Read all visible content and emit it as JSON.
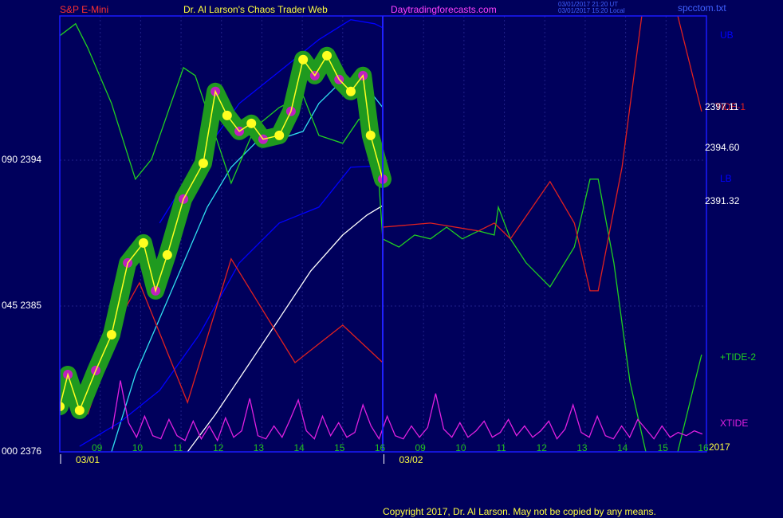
{
  "header": {
    "instrument": "S&P E-Mini",
    "title": "Dr. Al Larson's Chaos Trader Web",
    "site": "Daytradingforecasts.com",
    "stamp_1": "03/01/2017 21:20 UT",
    "stamp_2": "03/01/2017 15:20 Local",
    "file": "spcctom.txt"
  },
  "footer": "Copyright 2017, Dr. Al Larson. May not be copied by any means.",
  "chart_data": {
    "type": "line",
    "xlim": [
      0,
      16
    ],
    "ylim": [
      2376,
      2402.9
    ],
    "xticks": [
      {
        "value": 1,
        "label": "09"
      },
      {
        "value": 2,
        "label": "10"
      },
      {
        "value": 3,
        "label": "11"
      },
      {
        "value": 4,
        "label": "12"
      },
      {
        "value": 5,
        "label": "13"
      },
      {
        "value": 6,
        "label": "14"
      },
      {
        "value": 7,
        "label": "15"
      },
      {
        "value": 8,
        "label": "16"
      },
      {
        "value": 9,
        "label": "09"
      },
      {
        "value": 10,
        "label": "10"
      },
      {
        "value": 11,
        "label": "11"
      },
      {
        "value": 12,
        "label": "12"
      },
      {
        "value": 13,
        "label": "13"
      },
      {
        "value": 14,
        "label": "14"
      },
      {
        "value": 15,
        "label": "15"
      },
      {
        "value": 16,
        "label": "16"
      }
    ],
    "date_ticks": [
      {
        "value": 0,
        "label": "03/01"
      },
      {
        "value": 8,
        "label": "03/02"
      }
    ],
    "yticks": [
      {
        "value": 2376,
        "label": "000  2376"
      },
      {
        "value": 2385,
        "label": "045  2385"
      },
      {
        "value": 2394,
        "label": "090  2394"
      }
    ],
    "grid": true,
    "right_labels": [
      "2397.11",
      "2394.60",
      "2391.32",
      "2017"
    ],
    "series": [
      {
        "name": "UB",
        "color": "#0000ff",
        "x": [
          2.47,
          3.45,
          4.44,
          5.43,
          6.41,
          7.2,
          7.79,
          7.99
        ],
        "values": [
          2390.12,
          2394.06,
          2397.5,
          2399.47,
          2401.44,
          2402.67,
          2402.42,
          2402.17
        ]
      },
      {
        "name": "LB",
        "color": "#0000ff",
        "x": [
          0.49,
          1.48,
          2.47,
          3.45,
          4.44,
          5.43,
          6.41,
          7.2,
          7.99
        ],
        "values": [
          2376.34,
          2377.82,
          2379.79,
          2383.23,
          2387.66,
          2390.12,
          2391.1,
          2393.56,
          2393.66
        ]
      },
      {
        "name": "TIDE-1",
        "color": "#e02020",
        "x": [
          0.69,
          1.48,
          1.97,
          3.16,
          4.24,
          5.82,
          7.0,
          7.99,
          8.0,
          9.17,
          10.36,
          10.75,
          11.15,
          12.13,
          12.73,
          13.12,
          13.32,
          13.91,
          14.4,
          14.8,
          15.29,
          15.88
        ],
        "values": [
          2378.31,
          2384.22,
          2386.43,
          2379.05,
          2387.91,
          2381.51,
          2383.82,
          2381.51,
          2389.87,
          2390.12,
          2389.63,
          2390.12,
          2389.14,
          2392.68,
          2390.12,
          2385.94,
          2385.94,
          2393.56,
          2402.91,
          null,
          2402.91,
          2397.01
        ]
      },
      {
        "name": "+TIDE-2",
        "color": "#20d020",
        "x": [
          0,
          0.39,
          0.69,
          1.28,
          1.87,
          2.27,
          3.06,
          3.35,
          3.85,
          4.24,
          4.83,
          5.43,
          6.02,
          6.41,
          7.0,
          7.4,
          7.79,
          7.99,
          8.39,
          8.78,
          9.17,
          9.57,
          9.96,
          10.36,
          10.75,
          10.85,
          11.15,
          11.54,
          12.13,
          12.73,
          13.12,
          13.32,
          13.71,
          14.11,
          14.5,
          14.7,
          15.29,
          15.88
        ],
        "values": [
          2401.68,
          2402.42,
          2400.94,
          2397.5,
          2392.83,
          2394.06,
          2399.71,
          2399.22,
          2395.53,
          2392.58,
          2396.02,
          2397.25,
          2397.99,
          2395.53,
          2395.04,
          2396.52,
          2396.52,
          2389.14,
          2388.64,
          2389.38,
          2389.14,
          2389.87,
          2389.14,
          2389.63,
          2389.38,
          2391.1,
          2389.14,
          2387.66,
          2386.18,
          2388.64,
          2392.83,
          2392.83,
          2387.66,
          2380.28,
          2376.0,
          null,
          2376.0,
          2382.0
        ]
      },
      {
        "name": "XTIDE",
        "color": "#e020e0",
        "x": [
          1.3,
          1.5,
          1.7,
          1.9,
          2.1,
          2.3,
          2.5,
          2.7,
          2.9,
          3.1,
          3.3,
          3.5,
          3.7,
          3.9,
          4.1,
          4.3,
          4.5,
          4.7,
          4.9,
          5.1,
          5.3,
          5.5,
          5.7,
          5.9,
          6.1,
          6.3,
          6.5,
          6.7,
          6.9,
          7.1,
          7.3,
          7.5,
          7.7,
          7.9,
          8.1,
          8.3,
          8.5,
          8.7,
          8.9,
          9.1,
          9.3,
          9.5,
          9.7,
          9.9,
          10.1,
          10.3,
          10.5,
          10.7,
          10.9,
          11.1,
          11.3,
          11.5,
          11.7,
          11.9,
          12.1,
          12.3,
          12.5,
          12.7,
          12.9,
          13.1,
          13.3,
          13.5,
          13.7,
          13.9,
          14.1,
          14.3,
          14.5,
          14.7,
          14.9,
          15.1,
          15.3,
          15.5,
          15.7,
          15.9
        ],
        "values": [
          2377.4,
          2380.4,
          2377.8,
          2376.9,
          2378.2,
          2377.0,
          2376.8,
          2378.0,
          2377.0,
          2376.7,
          2377.9,
          2376.8,
          2377.6,
          2376.7,
          2378.1,
          2376.9,
          2377.3,
          2379.3,
          2377.0,
          2376.8,
          2377.6,
          2376.9,
          2378.0,
          2379.2,
          2377.3,
          2376.8,
          2378.2,
          2377.0,
          2377.8,
          2376.9,
          2377.2,
          2378.9,
          2377.6,
          2376.8,
          2378.2,
          2377.0,
          2376.8,
          2377.6,
          2376.9,
          2377.5,
          2379.6,
          2377.4,
          2376.9,
          2377.8,
          2376.9,
          2377.3,
          2377.9,
          2376.9,
          2377.2,
          2378.0,
          2377.0,
          2377.6,
          2376.9,
          2377.3,
          2377.9,
          2376.8,
          2377.4,
          2378.9,
          2377.2,
          2376.9,
          2378.2,
          2377.0,
          2376.8,
          2377.6,
          2376.9,
          2378.0,
          2377.4,
          2376.8,
          2377.6,
          2376.9,
          2377.2,
          2377.0,
          2377.3,
          2377.1
        ]
      },
      {
        "color": "#ffffff",
        "x": [
          3.16,
          3.85,
          4.64,
          5.43,
          6.21,
          7.0,
          7.6,
          7.99
        ],
        "values": [
          2376.0,
          2378.31,
          2381.26,
          2384.22,
          2387.17,
          2389.38,
          2390.61,
          2391.2
        ]
      },
      {
        "color": "#30e0f0",
        "x": [
          1.28,
          1.87,
          2.47,
          3.06,
          3.65,
          4.24,
          4.83,
          5.43,
          6.02,
          6.41,
          6.81,
          7.2,
          7.6,
          7.99
        ],
        "values": [
          2376.0,
          2380.77,
          2384.22,
          2387.66,
          2391.1,
          2393.56,
          2395.04,
          2395.29,
          2395.78,
          2397.5,
          2398.48,
          2398.73,
          2398.48,
          2397.25
        ]
      },
      {
        "color": "#ffff20",
        "x": [
          0,
          0.2,
          0.49,
          0.89,
          1.28,
          1.68,
          2.07,
          2.37,
          2.66,
          3.06,
          3.55,
          3.85,
          4.14,
          4.44,
          4.74,
          5.03,
          5.43,
          5.72,
          6.02,
          6.31,
          6.61,
          6.91,
          7.2,
          7.5,
          7.69,
          7.99
        ],
        "values": [
          2378.8,
          2380.77,
          2378.56,
          2381.02,
          2383.23,
          2387.66,
          2388.89,
          2385.94,
          2388.15,
          2391.6,
          2393.81,
          2398.24,
          2396.76,
          2395.78,
          2396.27,
          2395.29,
          2395.53,
          2397.01,
          2400.21,
          2399.22,
          2400.45,
          2398.98,
          2398.24,
          2399.22,
          2395.53,
          2392.83
        ]
      }
    ]
  }
}
